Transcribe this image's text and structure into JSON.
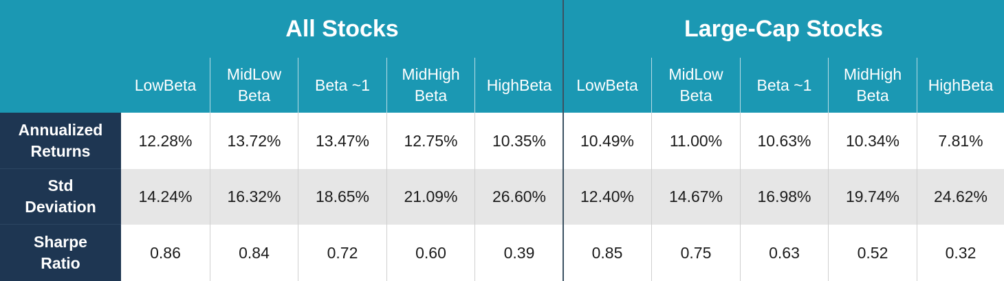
{
  "groups": [
    {
      "title": "All Stocks"
    },
    {
      "title": "Large-Cap Stocks"
    }
  ],
  "columns": [
    {
      "line1": "LowBeta",
      "line2": ""
    },
    {
      "line1": "MidLow",
      "line2": "Beta"
    },
    {
      "line1": "Beta ~1",
      "line2": ""
    },
    {
      "line1": "MidHigh",
      "line2": "Beta"
    },
    {
      "line1": "HighBeta",
      "line2": ""
    },
    {
      "line1": "LowBeta",
      "line2": ""
    },
    {
      "line1": "MidLow",
      "line2": "Beta"
    },
    {
      "line1": "Beta ~1",
      "line2": ""
    },
    {
      "line1": "MidHigh",
      "line2": "Beta"
    },
    {
      "line1": "HighBeta",
      "line2": ""
    }
  ],
  "rows": [
    {
      "line1": "Annualized",
      "line2": "Returns",
      "values": [
        "12.28%",
        "13.72%",
        "13.47%",
        "12.75%",
        "10.35%",
        "10.49%",
        "11.00%",
        "10.63%",
        "10.34%",
        "7.81%"
      ]
    },
    {
      "line1": "Std",
      "line2": "Deviation",
      "values": [
        "14.24%",
        "16.32%",
        "18.65%",
        "21.09%",
        "26.60%",
        "12.40%",
        "14.67%",
        "16.98%",
        "19.74%",
        "24.62%"
      ]
    },
    {
      "line1": "Sharpe",
      "line2": "Ratio",
      "values": [
        "0.86",
        "0.84",
        "0.72",
        "0.60",
        "0.39",
        "0.85",
        "0.75",
        "0.63",
        "0.52",
        "0.32"
      ]
    }
  ],
  "colors": {
    "header_teal": "#1b98b3",
    "row_header_navy": "#1e3652",
    "alt_row_gray": "#e6e6e6"
  }
}
